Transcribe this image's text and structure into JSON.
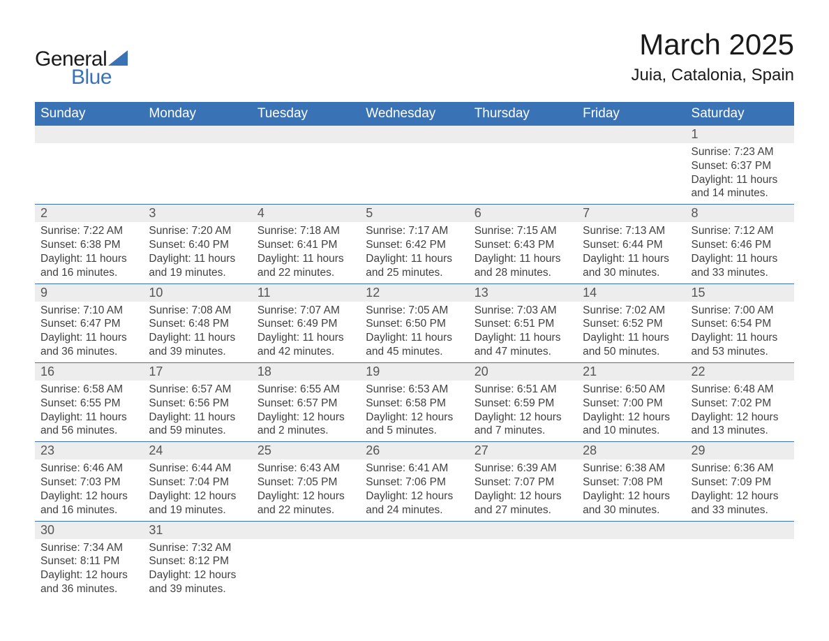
{
  "logo": {
    "word1": "General",
    "word2": "Blue",
    "icon_color": "#3a73b5"
  },
  "title": "March 2025",
  "location": "Juia, Catalonia, Spain",
  "colors": {
    "header_bg": "#3a73b5",
    "header_text": "#ffffff",
    "daynum_bg": "#ededed",
    "body_text": "#404040",
    "row_border": "#3a73b5",
    "page_bg": "#ffffff"
  },
  "fonts": {
    "title_size": 42,
    "location_size": 24,
    "header_size": 19,
    "daynum_size": 18,
    "cell_size": 15.5
  },
  "weekdays": [
    "Sunday",
    "Monday",
    "Tuesday",
    "Wednesday",
    "Thursday",
    "Friday",
    "Saturday"
  ],
  "weeks": [
    {
      "days": [
        null,
        null,
        null,
        null,
        null,
        null,
        {
          "n": "1",
          "sunrise": "Sunrise: 7:23 AM",
          "sunset": "Sunset: 6:37 PM",
          "dl1": "Daylight: 11 hours",
          "dl2": "and 14 minutes."
        }
      ]
    },
    {
      "days": [
        {
          "n": "2",
          "sunrise": "Sunrise: 7:22 AM",
          "sunset": "Sunset: 6:38 PM",
          "dl1": "Daylight: 11 hours",
          "dl2": "and 16 minutes."
        },
        {
          "n": "3",
          "sunrise": "Sunrise: 7:20 AM",
          "sunset": "Sunset: 6:40 PM",
          "dl1": "Daylight: 11 hours",
          "dl2": "and 19 minutes."
        },
        {
          "n": "4",
          "sunrise": "Sunrise: 7:18 AM",
          "sunset": "Sunset: 6:41 PM",
          "dl1": "Daylight: 11 hours",
          "dl2": "and 22 minutes."
        },
        {
          "n": "5",
          "sunrise": "Sunrise: 7:17 AM",
          "sunset": "Sunset: 6:42 PM",
          "dl1": "Daylight: 11 hours",
          "dl2": "and 25 minutes."
        },
        {
          "n": "6",
          "sunrise": "Sunrise: 7:15 AM",
          "sunset": "Sunset: 6:43 PM",
          "dl1": "Daylight: 11 hours",
          "dl2": "and 28 minutes."
        },
        {
          "n": "7",
          "sunrise": "Sunrise: 7:13 AM",
          "sunset": "Sunset: 6:44 PM",
          "dl1": "Daylight: 11 hours",
          "dl2": "and 30 minutes."
        },
        {
          "n": "8",
          "sunrise": "Sunrise: 7:12 AM",
          "sunset": "Sunset: 6:46 PM",
          "dl1": "Daylight: 11 hours",
          "dl2": "and 33 minutes."
        }
      ]
    },
    {
      "days": [
        {
          "n": "9",
          "sunrise": "Sunrise: 7:10 AM",
          "sunset": "Sunset: 6:47 PM",
          "dl1": "Daylight: 11 hours",
          "dl2": "and 36 minutes."
        },
        {
          "n": "10",
          "sunrise": "Sunrise: 7:08 AM",
          "sunset": "Sunset: 6:48 PM",
          "dl1": "Daylight: 11 hours",
          "dl2": "and 39 minutes."
        },
        {
          "n": "11",
          "sunrise": "Sunrise: 7:07 AM",
          "sunset": "Sunset: 6:49 PM",
          "dl1": "Daylight: 11 hours",
          "dl2": "and 42 minutes."
        },
        {
          "n": "12",
          "sunrise": "Sunrise: 7:05 AM",
          "sunset": "Sunset: 6:50 PM",
          "dl1": "Daylight: 11 hours",
          "dl2": "and 45 minutes."
        },
        {
          "n": "13",
          "sunrise": "Sunrise: 7:03 AM",
          "sunset": "Sunset: 6:51 PM",
          "dl1": "Daylight: 11 hours",
          "dl2": "and 47 minutes."
        },
        {
          "n": "14",
          "sunrise": "Sunrise: 7:02 AM",
          "sunset": "Sunset: 6:52 PM",
          "dl1": "Daylight: 11 hours",
          "dl2": "and 50 minutes."
        },
        {
          "n": "15",
          "sunrise": "Sunrise: 7:00 AM",
          "sunset": "Sunset: 6:54 PM",
          "dl1": "Daylight: 11 hours",
          "dl2": "and 53 minutes."
        }
      ]
    },
    {
      "days": [
        {
          "n": "16",
          "sunrise": "Sunrise: 6:58 AM",
          "sunset": "Sunset: 6:55 PM",
          "dl1": "Daylight: 11 hours",
          "dl2": "and 56 minutes."
        },
        {
          "n": "17",
          "sunrise": "Sunrise: 6:57 AM",
          "sunset": "Sunset: 6:56 PM",
          "dl1": "Daylight: 11 hours",
          "dl2": "and 59 minutes."
        },
        {
          "n": "18",
          "sunrise": "Sunrise: 6:55 AM",
          "sunset": "Sunset: 6:57 PM",
          "dl1": "Daylight: 12 hours",
          "dl2": "and 2 minutes."
        },
        {
          "n": "19",
          "sunrise": "Sunrise: 6:53 AM",
          "sunset": "Sunset: 6:58 PM",
          "dl1": "Daylight: 12 hours",
          "dl2": "and 5 minutes."
        },
        {
          "n": "20",
          "sunrise": "Sunrise: 6:51 AM",
          "sunset": "Sunset: 6:59 PM",
          "dl1": "Daylight: 12 hours",
          "dl2": "and 7 minutes."
        },
        {
          "n": "21",
          "sunrise": "Sunrise: 6:50 AM",
          "sunset": "Sunset: 7:00 PM",
          "dl1": "Daylight: 12 hours",
          "dl2": "and 10 minutes."
        },
        {
          "n": "22",
          "sunrise": "Sunrise: 6:48 AM",
          "sunset": "Sunset: 7:02 PM",
          "dl1": "Daylight: 12 hours",
          "dl2": "and 13 minutes."
        }
      ]
    },
    {
      "days": [
        {
          "n": "23",
          "sunrise": "Sunrise: 6:46 AM",
          "sunset": "Sunset: 7:03 PM",
          "dl1": "Daylight: 12 hours",
          "dl2": "and 16 minutes."
        },
        {
          "n": "24",
          "sunrise": "Sunrise: 6:44 AM",
          "sunset": "Sunset: 7:04 PM",
          "dl1": "Daylight: 12 hours",
          "dl2": "and 19 minutes."
        },
        {
          "n": "25",
          "sunrise": "Sunrise: 6:43 AM",
          "sunset": "Sunset: 7:05 PM",
          "dl1": "Daylight: 12 hours",
          "dl2": "and 22 minutes."
        },
        {
          "n": "26",
          "sunrise": "Sunrise: 6:41 AM",
          "sunset": "Sunset: 7:06 PM",
          "dl1": "Daylight: 12 hours",
          "dl2": "and 24 minutes."
        },
        {
          "n": "27",
          "sunrise": "Sunrise: 6:39 AM",
          "sunset": "Sunset: 7:07 PM",
          "dl1": "Daylight: 12 hours",
          "dl2": "and 27 minutes."
        },
        {
          "n": "28",
          "sunrise": "Sunrise: 6:38 AM",
          "sunset": "Sunset: 7:08 PM",
          "dl1": "Daylight: 12 hours",
          "dl2": "and 30 minutes."
        },
        {
          "n": "29",
          "sunrise": "Sunrise: 6:36 AM",
          "sunset": "Sunset: 7:09 PM",
          "dl1": "Daylight: 12 hours",
          "dl2": "and 33 minutes."
        }
      ]
    },
    {
      "days": [
        {
          "n": "30",
          "sunrise": "Sunrise: 7:34 AM",
          "sunset": "Sunset: 8:11 PM",
          "dl1": "Daylight: 12 hours",
          "dl2": "and 36 minutes."
        },
        {
          "n": "31",
          "sunrise": "Sunrise: 7:32 AM",
          "sunset": "Sunset: 8:12 PM",
          "dl1": "Daylight: 12 hours",
          "dl2": "and 39 minutes."
        },
        null,
        null,
        null,
        null,
        null
      ]
    }
  ]
}
